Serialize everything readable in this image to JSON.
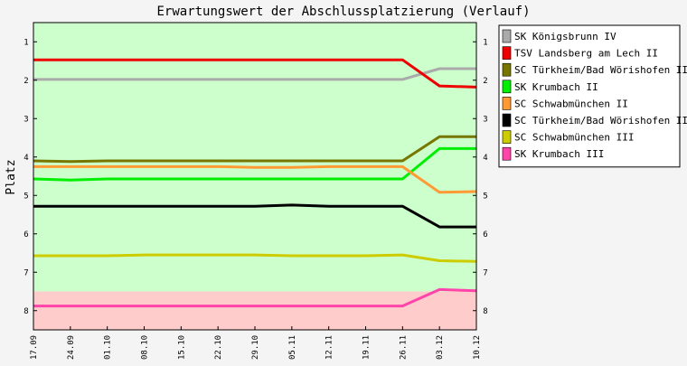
{
  "chart_data": {
    "type": "line",
    "title": "Erwartungswert der Abschlussplatzierung (Verlauf)",
    "ylabel": "Platz",
    "xlabel": "",
    "ylim": [
      0.5,
      8.5
    ],
    "y_inverted": true,
    "yticks": [
      "1",
      "2",
      "3",
      "4",
      "5",
      "6",
      "7",
      "8"
    ],
    "categories": [
      "17.09",
      "24.09",
      "01.10",
      "08.10",
      "15.10",
      "22.10",
      "29.10",
      "05.11",
      "12.11",
      "19.11",
      "26.11",
      "03.12",
      "10.12"
    ],
    "zones": [
      {
        "from": 0.5,
        "to": 7.5,
        "color": "#ccffcc"
      },
      {
        "from": 7.5,
        "to": 8.5,
        "color": "#ffcccc"
      }
    ],
    "legend_position": "right",
    "grid": false,
    "series": [
      {
        "name": "SK Königsbrunn IV",
        "color": "#aaaaaa",
        "values": [
          1.98,
          1.98,
          1.98,
          1.98,
          1.98,
          1.98,
          1.98,
          1.98,
          1.98,
          1.98,
          1.98,
          1.7,
          1.7
        ]
      },
      {
        "name": "TSV Landsberg am Lech II",
        "color": "#ee0000",
        "values": [
          1.47,
          1.47,
          1.47,
          1.47,
          1.47,
          1.47,
          1.47,
          1.47,
          1.47,
          1.47,
          1.47,
          2.15,
          2.18
        ]
      },
      {
        "name": "SC Türkheim/Bad Wörishofen II",
        "color": "#777700",
        "values": [
          4.1,
          4.12,
          4.1,
          4.1,
          4.1,
          4.1,
          4.1,
          4.1,
          4.1,
          4.1,
          4.1,
          3.47,
          3.47
        ]
      },
      {
        "name": "SK Krumbach II",
        "color": "#00ee00",
        "values": [
          4.57,
          4.6,
          4.57,
          4.57,
          4.57,
          4.57,
          4.57,
          4.57,
          4.57,
          4.57,
          4.57,
          3.78,
          3.78
        ]
      },
      {
        "name": "SC Schwabmünchen II",
        "color": "#ff9933",
        "values": [
          4.25,
          4.25,
          4.25,
          4.25,
          4.25,
          4.25,
          4.27,
          4.27,
          4.25,
          4.25,
          4.25,
          4.92,
          4.9
        ]
      },
      {
        "name": "SC Türkheim/Bad Wörishofen III",
        "color": "#000000",
        "values": [
          5.28,
          5.28,
          5.28,
          5.28,
          5.28,
          5.28,
          5.28,
          5.25,
          5.28,
          5.28,
          5.28,
          5.82,
          5.82
        ]
      },
      {
        "name": "SC Schwabmünchen III",
        "color": "#cccc00",
        "values": [
          6.57,
          6.57,
          6.57,
          6.55,
          6.55,
          6.55,
          6.55,
          6.57,
          6.57,
          6.57,
          6.55,
          6.7,
          6.72
        ]
      },
      {
        "name": "SK Krumbach III",
        "color": "#ff44aa",
        "values": [
          7.88,
          7.88,
          7.88,
          7.88,
          7.88,
          7.88,
          7.88,
          7.88,
          7.88,
          7.88,
          7.88,
          7.45,
          7.48
        ]
      }
    ]
  }
}
